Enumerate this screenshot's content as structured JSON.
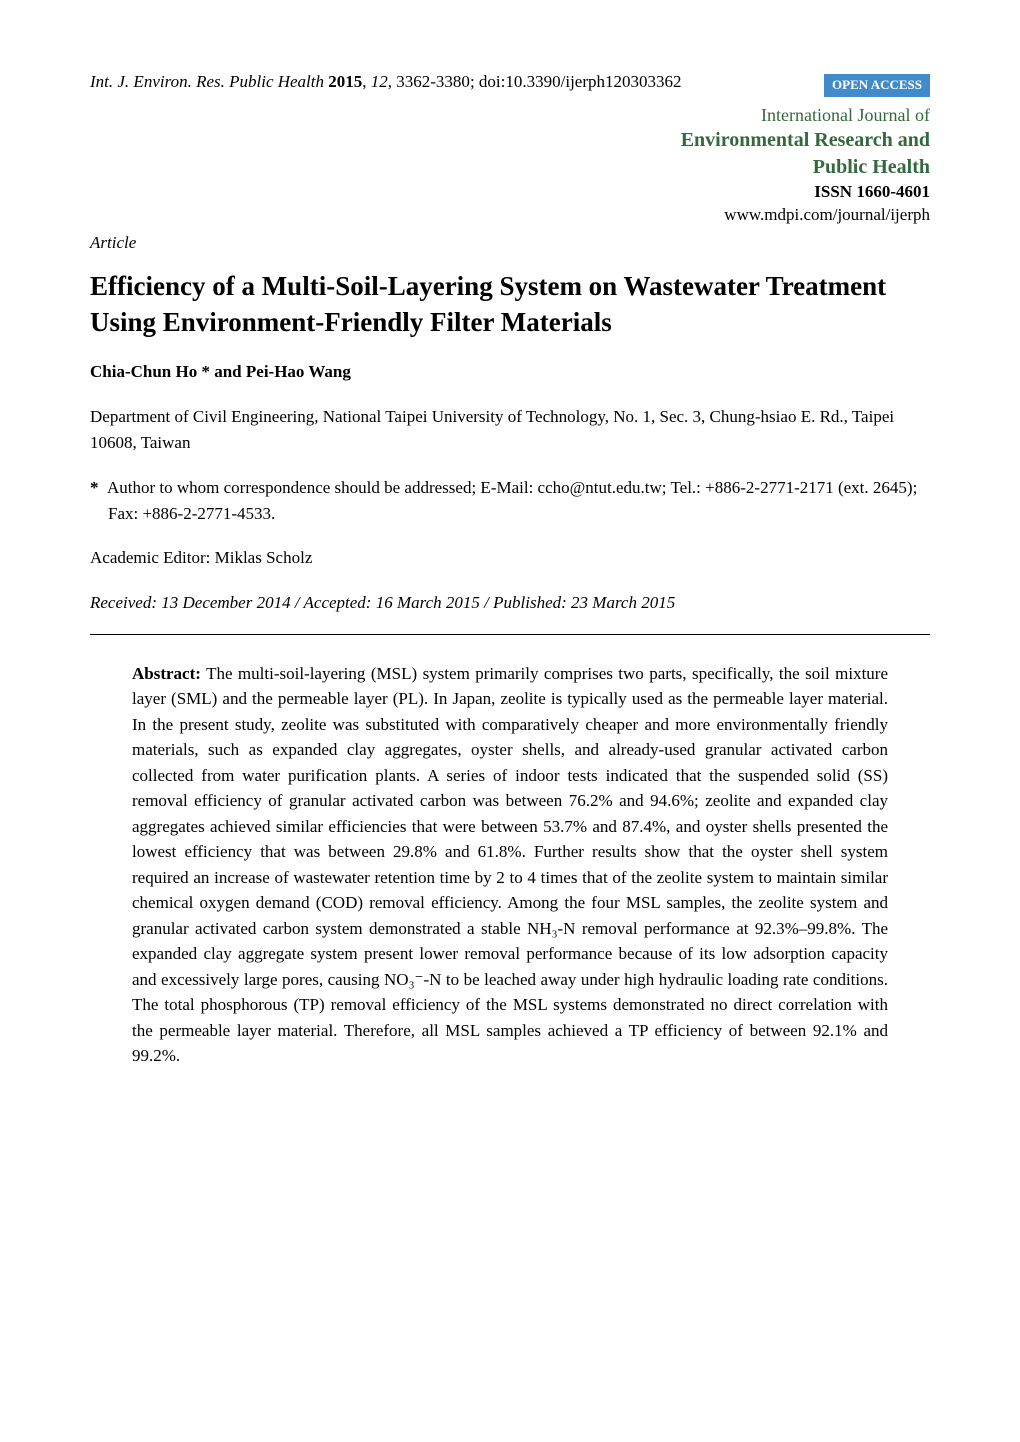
{
  "header": {
    "journal_abbr": "Int. J. Environ. Res. Public Health",
    "year": "2015",
    "volume": "12",
    "pages": "3362-3380",
    "doi": "doi:10.3390/ijerph120303362",
    "open_access": "OPEN ACCESS"
  },
  "journal": {
    "intl_line": "International Journal of",
    "name_line1": "Environmental Research and",
    "name_line2": "Public Health",
    "issn": "ISSN 1660-4601",
    "url": "www.mdpi.com/journal/ijerph"
  },
  "article_type": "Article",
  "title": "Efficiency of a Multi-Soil-Layering System on Wastewater Treatment Using Environment-Friendly Filter Materials",
  "authors": "Chia-Chun Ho * and Pei-Hao Wang",
  "affiliation": "Department of Civil Engineering, National Taipei University of Technology, No. 1, Sec. 3, Chung-hsiao E. Rd., Taipei 10608, Taiwan",
  "correspondence": {
    "asterisk": "*",
    "text": "Author to whom correspondence should be addressed; E-Mail: ccho@ntut.edu.tw; Tel.: +886-2-2771-2171 (ext. 2645); Fax: +886-2-2771-4533."
  },
  "editor": "Academic Editor: Miklas Scholz",
  "dates": "Received: 13 December 2014 / Accepted: 16 March 2015 / Published: 23 March 2015",
  "abstract": {
    "label": "Abstract:",
    "text": "The multi-soil-layering (MSL) system primarily comprises two parts, specifically, the soil mixture layer (SML) and the permeable layer (PL). In Japan, zeolite is typically used as the permeable layer material. In the present study, zeolite was substituted with comparatively cheaper and more environmentally friendly materials, such as expanded clay aggregates, oyster shells, and already-used granular activated carbon collected from water purification plants. A series of indoor tests indicated that the suspended solid (SS) removal efficiency of granular activated carbon was between 76.2% and 94.6%; zeolite and expanded clay aggregates achieved similar efficiencies that were between 53.7% and 87.4%, and oyster shells presented the lowest efficiency that was between 29.8% and 61.8%. Further results show that the oyster shell system required an increase of wastewater retention time by 2 to 4 times that of the zeolite system to maintain similar chemical oxygen demand (COD) removal efficiency. Among the four MSL samples, the zeolite system and granular activated carbon system demonstrated a stable NH₃-N removal performance at 92.3%–99.8%. The expanded clay aggregate system present lower removal performance because of its low adsorption capacity and excessively large pores, causing NO₃⁻-N to be leached away under high hydraulic loading rate conditions. The total phosphorous (TP) removal efficiency of the MSL systems demonstrated no direct correlation with the permeable layer material. Therefore, all MSL samples achieved a TP efficiency of between 92.1% and 99.2%."
  },
  "colors": {
    "journal_green": "#34693f",
    "badge_blue": "#418bca",
    "text": "#000000",
    "background": "#ffffff"
  },
  "typography": {
    "body_font": "Times New Roman",
    "title_fontsize_pt": 20,
    "body_fontsize_pt": 12,
    "journal_name_fontsize_pt": 15
  }
}
